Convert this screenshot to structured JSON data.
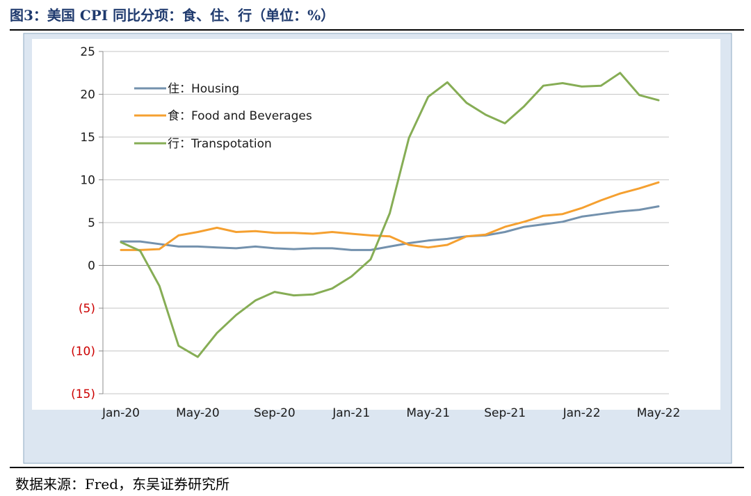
{
  "figure": {
    "title": "图3：美国 CPI 同比分项：食、住、行（单位：%）",
    "source": "数据来源：Fred，东吴证券研究所"
  },
  "chart_data": {
    "type": "line",
    "title": "",
    "xlabel": "",
    "ylabel": "",
    "ylim": [
      -15,
      25
    ],
    "yticks": [
      25,
      20,
      15,
      10,
      5,
      0,
      -5,
      -10,
      -15
    ],
    "ytick_labels": [
      "25",
      "20",
      "15",
      "10",
      "5",
      "0",
      "(5)",
      "(10)",
      "(15)"
    ],
    "negative_label_color": "#cc0000",
    "x": [
      "Jan-20",
      "Feb-20",
      "Mar-20",
      "Apr-20",
      "May-20",
      "Jun-20",
      "Jul-20",
      "Aug-20",
      "Sep-20",
      "Oct-20",
      "Nov-20",
      "Dec-20",
      "Jan-21",
      "Feb-21",
      "Mar-21",
      "Apr-21",
      "May-21",
      "Jun-21",
      "Jul-21",
      "Aug-21",
      "Sep-21",
      "Oct-21",
      "Nov-21",
      "Dec-21",
      "Jan-22",
      "Feb-22",
      "Mar-22",
      "Apr-22",
      "May-22"
    ],
    "xtick_labels": [
      "Jan-20",
      "May-20",
      "Sep-20",
      "Jan-21",
      "May-21",
      "Sep-21",
      "Jan-22",
      "May-22"
    ],
    "grid": "horizontal",
    "legend_position": "top-left",
    "series": [
      {
        "name": "住：Housing",
        "color": "#7391ad",
        "values": [
          2.8,
          2.8,
          2.5,
          2.2,
          2.2,
          2.1,
          2.0,
          2.2,
          2.0,
          1.9,
          2.0,
          2.0,
          1.8,
          1.8,
          2.2,
          2.6,
          2.9,
          3.1,
          3.4,
          3.5,
          3.9,
          4.5,
          4.8,
          5.1,
          5.7,
          6.0,
          6.3,
          6.5,
          6.9
        ]
      },
      {
        "name": "食：Food and Beverages",
        "color": "#f5a030",
        "values": [
          1.8,
          1.8,
          1.9,
          3.5,
          3.9,
          4.4,
          3.9,
          4.0,
          3.8,
          3.8,
          3.7,
          3.9,
          3.7,
          3.5,
          3.4,
          2.4,
          2.1,
          2.4,
          3.4,
          3.6,
          4.5,
          5.1,
          5.8,
          6.0,
          6.7,
          7.6,
          8.4,
          9.0,
          9.7
        ]
      },
      {
        "name": "行：Transpotation",
        "color": "#86ad55",
        "values": [
          2.7,
          1.7,
          -2.4,
          -9.4,
          -10.7,
          -7.9,
          -5.8,
          -4.1,
          -3.1,
          -3.5,
          -3.4,
          -2.7,
          -1.3,
          0.7,
          6.1,
          14.9,
          19.7,
          21.4,
          19.0,
          17.6,
          16.6,
          18.6,
          21.0,
          21.3,
          20.9,
          21.0,
          22.5,
          19.9,
          19.3
        ]
      }
    ]
  }
}
